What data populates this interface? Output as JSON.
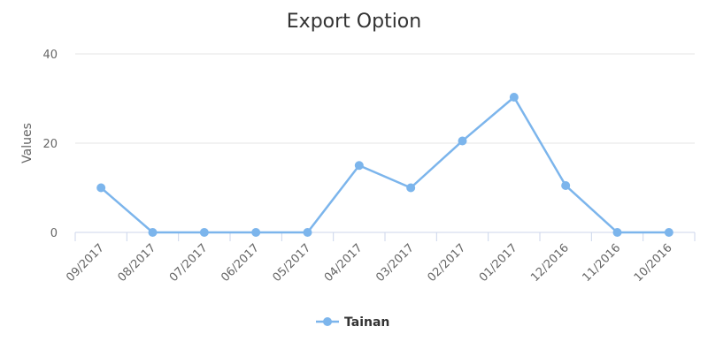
{
  "chart_data": {
    "type": "line",
    "title": "Export Option",
    "xlabel": "",
    "ylabel": "Values",
    "ylim": [
      0,
      40
    ],
    "yticks": [
      0,
      20,
      40
    ],
    "grid": true,
    "legend_position": "bottom-center",
    "categories": [
      "09/2017",
      "08/2017",
      "07/2017",
      "06/2017",
      "05/2017",
      "04/2017",
      "03/2017",
      "02/2017",
      "01/2017",
      "12/2016",
      "11/2016",
      "10/2016"
    ],
    "series": [
      {
        "name": "Tainan",
        "color": "#7cb5ec",
        "values": [
          10,
          0,
          0,
          0,
          0,
          15,
          10,
          20.5,
          30.3,
          10.5,
          0,
          0
        ]
      }
    ]
  }
}
